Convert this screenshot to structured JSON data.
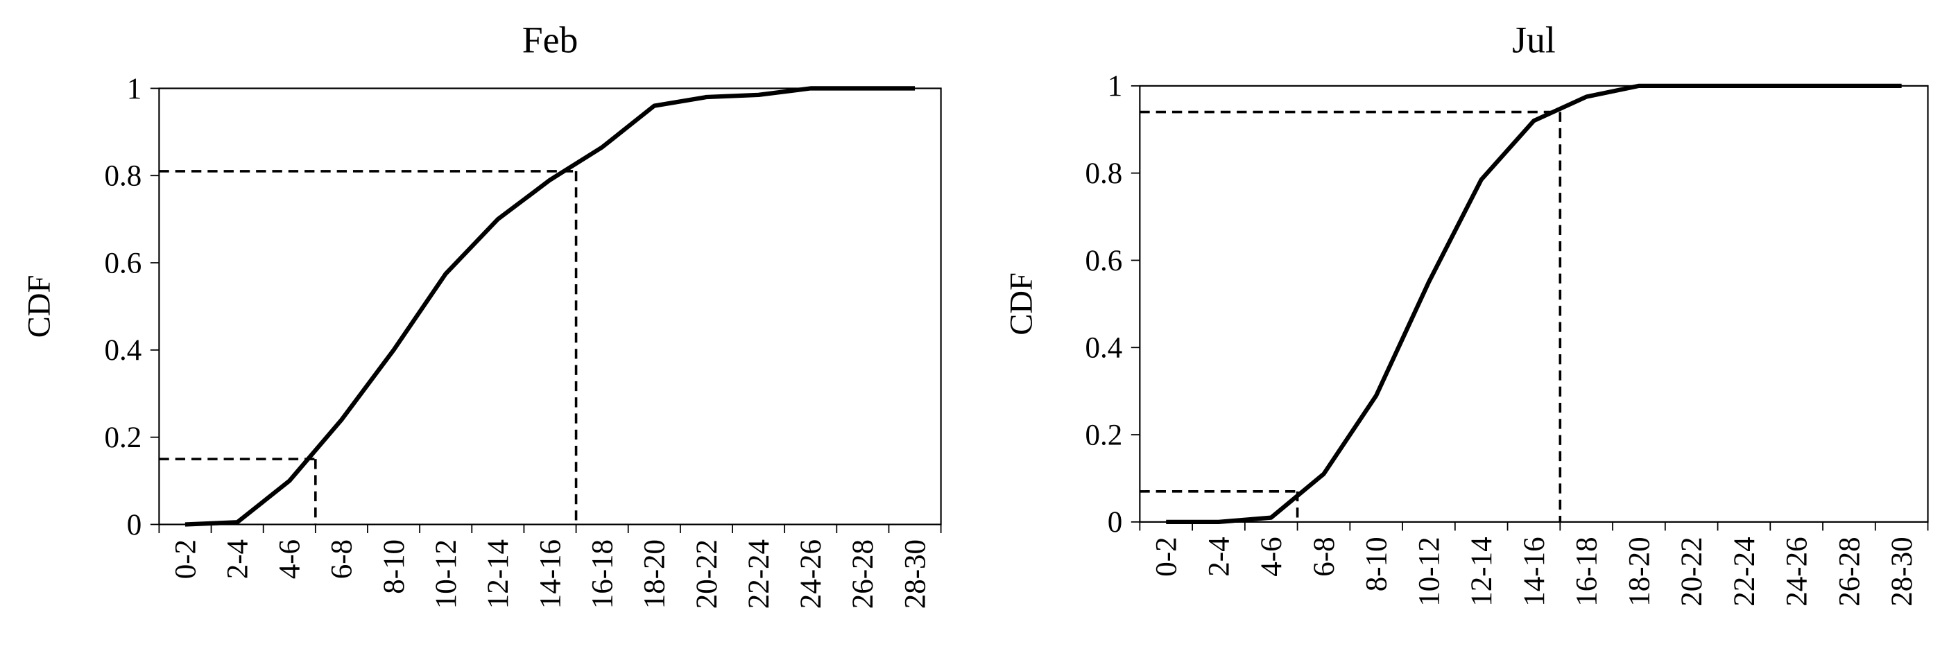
{
  "chart_data": [
    {
      "type": "line",
      "title": "Feb",
      "y_label": "CDF",
      "categories": [
        "0-2",
        "2-4",
        "4-6",
        "6-8",
        "8-10",
        "10-12",
        "12-14",
        "14-16",
        "16-18",
        "18-20",
        "20-22",
        "22-24",
        "24-26",
        "26-28",
        "28-30"
      ],
      "series": [
        {
          "color": "#000000",
          "values": [
            0,
            0.005,
            0.1,
            0.24,
            0.4,
            0.575,
            0.7,
            0.79,
            0.865,
            0.96,
            0.98,
            0.985,
            1,
            1,
            1
          ]
        }
      ],
      "ylim": [
        0,
        1
      ],
      "yticks": [
        0,
        0.2,
        0.4,
        0.6,
        0.8,
        1
      ],
      "reference_lines": [
        {
          "x": 6,
          "y": 0.15
        },
        {
          "x": 16,
          "y": 0.81
        }
      ]
    },
    {
      "type": "line",
      "title": "Jul",
      "y_label": "CDF",
      "categories": [
        "0-2",
        "2-4",
        "4-6",
        "6-8",
        "8-10",
        "10-12",
        "12-14",
        "14-16",
        "16-18",
        "18-20",
        "20-22",
        "22-24",
        "24-26",
        "26-28",
        "28-30"
      ],
      "series": [
        {
          "color": "#000000",
          "values": [
            0,
            0,
            0.01,
            0.11,
            0.29,
            0.55,
            0.785,
            0.92,
            0.975,
            1,
            1,
            1,
            1,
            1,
            1
          ]
        }
      ],
      "ylim": [
        0,
        1
      ],
      "yticks": [
        0,
        0.2,
        0.4,
        0.6,
        0.8,
        1
      ],
      "reference_lines": [
        {
          "x": 6,
          "y": 0.07
        },
        {
          "x": 16,
          "y": 0.94
        }
      ]
    }
  ]
}
